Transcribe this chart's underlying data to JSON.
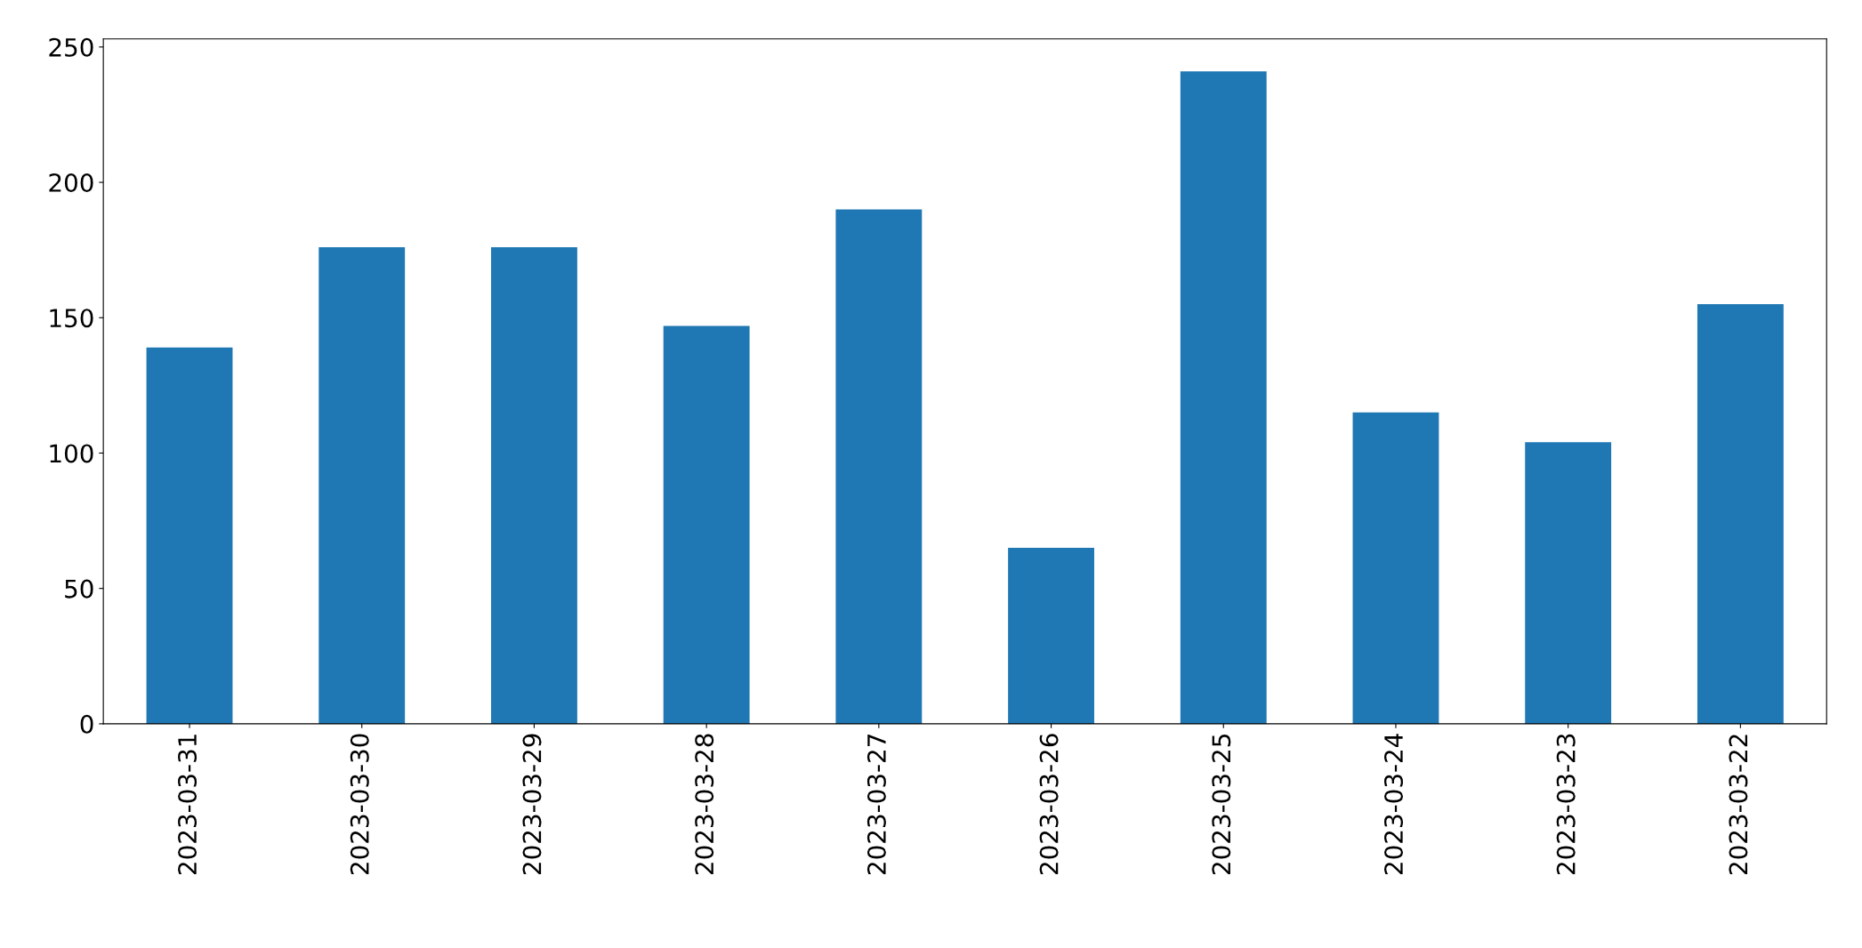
{
  "chart_data": {
    "type": "bar",
    "categories": [
      "2023-03-31",
      "2023-03-30",
      "2023-03-29",
      "2023-03-28",
      "2023-03-27",
      "2023-03-26",
      "2023-03-25",
      "2023-03-24",
      "2023-03-23",
      "2023-03-22"
    ],
    "values": [
      139,
      176,
      176,
      147,
      190,
      65,
      241,
      115,
      104,
      155
    ],
    "color": "#1f77b4",
    "ylim": [
      0,
      253
    ],
    "yticks": [
      0,
      50,
      100,
      150,
      200,
      250
    ],
    "grid": false,
    "legend": false
  }
}
